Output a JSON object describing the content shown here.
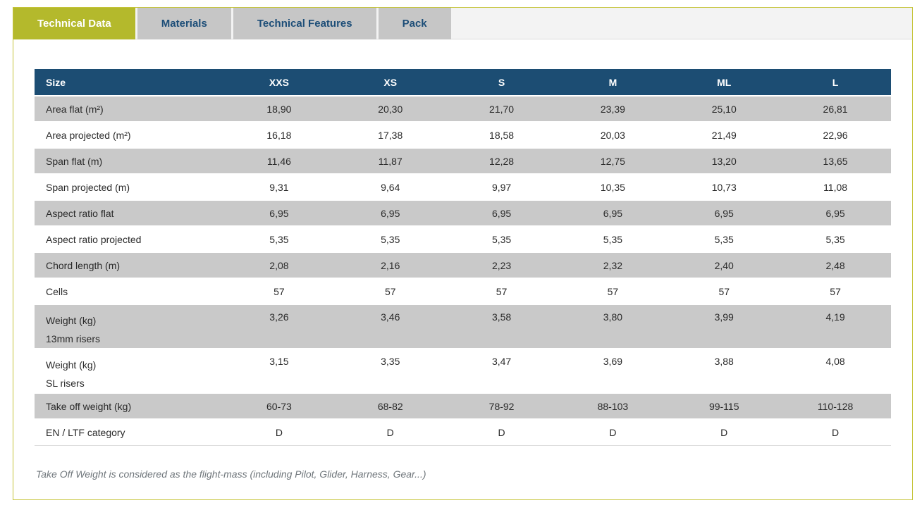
{
  "tabs": [
    {
      "label": "Technical Data",
      "active": true
    },
    {
      "label": "Materials",
      "active": false
    },
    {
      "label": "Technical Features",
      "active": false
    },
    {
      "label": "Pack",
      "active": false
    }
  ],
  "table": {
    "header": [
      "Size",
      "XXS",
      "XS",
      "S",
      "M",
      "ML",
      "L"
    ],
    "rows": [
      {
        "label": "Area flat (m²)",
        "values": [
          "18,90",
          "20,30",
          "21,70",
          "23,39",
          "25,10",
          "26,81"
        ]
      },
      {
        "label": "Area projected (m²)",
        "values": [
          "16,18",
          "17,38",
          "18,58",
          "20,03",
          "21,49",
          "22,96"
        ]
      },
      {
        "label": "Span flat (m)",
        "values": [
          "11,46",
          "11,87",
          "12,28",
          "12,75",
          "13,20",
          "13,65"
        ]
      },
      {
        "label": "Span projected (m)",
        "values": [
          "9,31",
          "9,64",
          "9,97",
          "10,35",
          "10,73",
          "11,08"
        ]
      },
      {
        "label": "Aspect ratio flat",
        "values": [
          "6,95",
          "6,95",
          "6,95",
          "6,95",
          "6,95",
          "6,95"
        ]
      },
      {
        "label": "Aspect ratio projected",
        "values": [
          "5,35",
          "5,35",
          "5,35",
          "5,35",
          "5,35",
          "5,35"
        ]
      },
      {
        "label": "Chord length (m)",
        "values": [
          "2,08",
          "2,16",
          "2,23",
          "2,32",
          "2,40",
          "2,48"
        ]
      },
      {
        "label": "Cells",
        "values": [
          "57",
          "57",
          "57",
          "57",
          "57",
          "57"
        ]
      },
      {
        "label": "Weight (kg)",
        "label2": "13mm risers",
        "values": [
          "3,26",
          "3,46",
          "3,58",
          "3,80",
          "3,99",
          "4,19"
        ]
      },
      {
        "label": "Weight (kg)",
        "label2": "SL risers",
        "values": [
          "3,15",
          "3,35",
          "3,47",
          "3,69",
          "3,88",
          "4,08"
        ]
      },
      {
        "label": "Take off weight (kg)",
        "values": [
          "60-73",
          "68-82",
          "78-92",
          "88-103",
          "99-115",
          "110-128"
        ]
      },
      {
        "label": "EN / LTF category",
        "values": [
          "D",
          "D",
          "D",
          "D",
          "D",
          "D"
        ]
      }
    ]
  },
  "footnote": "Take Off Weight is considered as the flight-mass (including Pilot, Glider, Harness, Gear...)",
  "colors": {
    "accent_yellow": "#b4b92c",
    "panel_border": "#c5c438",
    "header_blue": "#1c4d73",
    "tab_inactive_bg": "#c6c6c6",
    "tab_text_blue": "#1d4e78",
    "row_stripe_gray": "#c9c9c9",
    "footnote_gray": "#6f767b"
  }
}
